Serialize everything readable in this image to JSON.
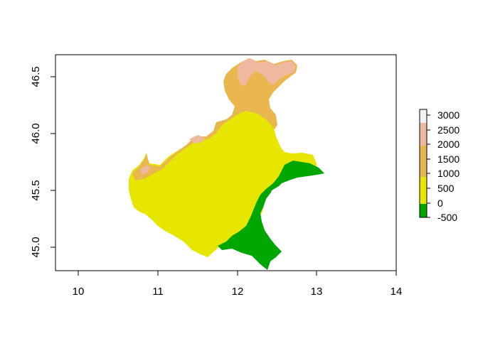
{
  "map": {
    "x_ticks": [
      "10",
      "11",
      "12",
      "13",
      "14"
    ],
    "y_ticks": [
      "45.0",
      "45.5",
      "46.0",
      "46.5"
    ],
    "xlim": [
      9.7,
      14.0
    ],
    "ylim": [
      44.8,
      46.68
    ],
    "legend": {
      "labels": [
        "3000",
        "2500",
        "2000",
        "1500",
        "1000",
        "500",
        "0",
        "-500"
      ],
      "breaks": [
        3000,
        2500,
        2000,
        1500,
        1000,
        500,
        0,
        -500
      ],
      "colors": {
        "below_0": "#00A600",
        "0_to_1000": "#E6E600",
        "1000_to_2000": "#EAB64E",
        "2000_to_2800": "#EEB99F",
        "above_2800": "#F2F2F2"
      }
    }
  }
}
